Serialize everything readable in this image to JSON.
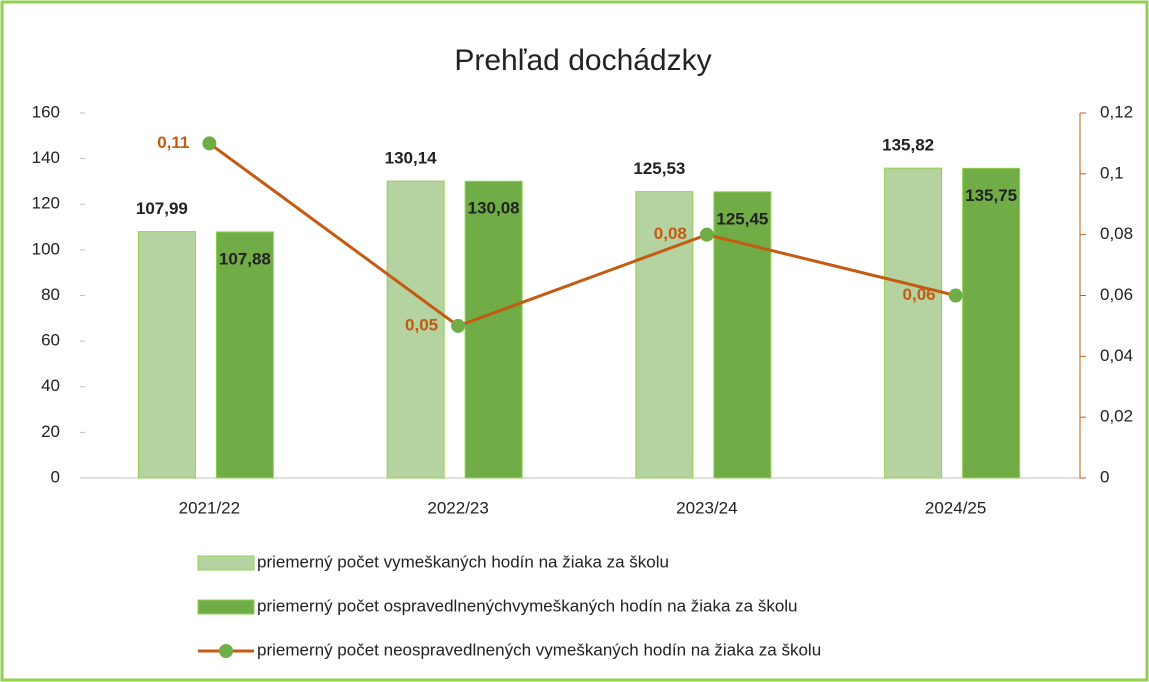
{
  "chart_data": {
    "type": "bar",
    "title": "Prehľad dochádzky",
    "categories": [
      "2021/22",
      "2022/23",
      "2023/24",
      "2024/25"
    ],
    "series": [
      {
        "name": "priemerný počet vymeškaných hodín na žiaka za školu",
        "color": "#b4d3a0",
        "values": [
          107.99,
          130.14,
          125.53,
          135.82
        ],
        "value_labels": [
          "107,99",
          "130,14",
          "125,53",
          "135,82"
        ]
      },
      {
        "name": "priemerný počet ospravedlnenýchvymeškaných hodín na žiaka za školu",
        "color": "#70ad47",
        "values": [
          107.88,
          130.08,
          125.45,
          135.75
        ],
        "value_labels": [
          "107,88",
          "130,08",
          "125,45",
          "135,75"
        ]
      },
      {
        "name": "priemerný počet neospravedlnených vymeškaných hodín na žiaka za školu",
        "type": "line",
        "axis": "y2",
        "color": "#c55a11",
        "marker_color": "#70ad47",
        "values": [
          0.11,
          0.05,
          0.08,
          0.06
        ],
        "value_labels": [
          "0,11",
          "0,05",
          "0,08",
          "0,06"
        ]
      }
    ],
    "ylim": [
      0,
      160
    ],
    "yticks": [
      0,
      20,
      40,
      60,
      80,
      100,
      120,
      140,
      160
    ],
    "y2lim": [
      0,
      0.12
    ],
    "y2ticks": [
      0,
      {
        "value": 0.02,
        "label": "0,02"
      },
      {
        "value": 0.04,
        "label": "0,04"
      },
      {
        "value": 0.06,
        "label": "0,06"
      },
      {
        "value": 0.08,
        "label": "0,08"
      },
      {
        "value": 0.1,
        "label": "0,1"
      },
      {
        "value": 0.12,
        "label": "0,12"
      }
    ]
  }
}
